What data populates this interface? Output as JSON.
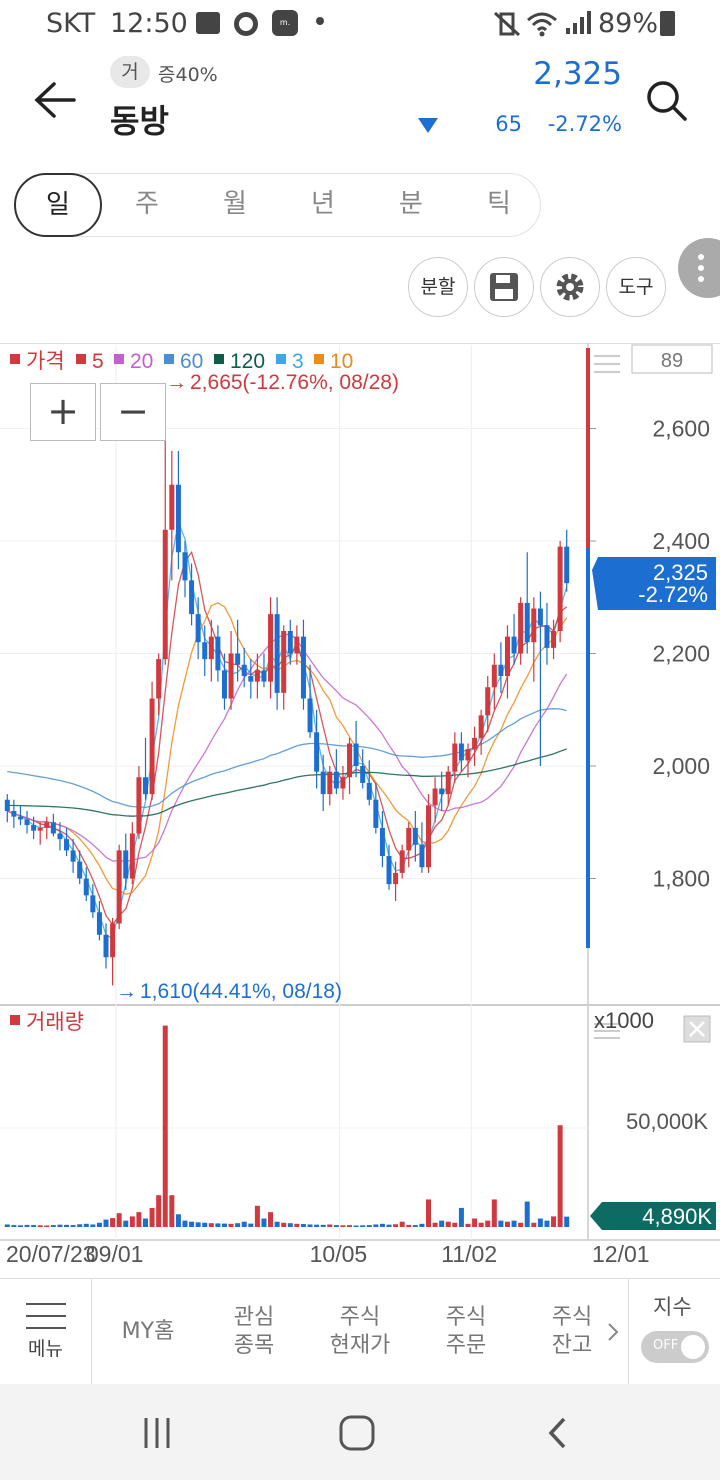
{
  "status_bar": {
    "carrier": "SKT",
    "time": "12:50",
    "battery": "89%"
  },
  "header": {
    "badge": "거",
    "margin_rate": "증40%",
    "stock_name": "동방",
    "price": "2,325",
    "change": "65",
    "change_pct": "-2.72%",
    "price_color": "#1c6fd1"
  },
  "period_tabs": [
    "일",
    "주",
    "월",
    "년",
    "분",
    "틱"
  ],
  "active_tab": "일",
  "tools": {
    "split": "분할",
    "tool": "도구"
  },
  "chart": {
    "legend": [
      {
        "label": "가격",
        "color": "#d0393e"
      },
      {
        "label": "5",
        "color": "#d0393e"
      },
      {
        "label": "20",
        "color": "#c45fcf"
      },
      {
        "label": "60",
        "color": "#4a8fd0"
      },
      {
        "label": "120",
        "color": "#0e5c4a"
      },
      {
        "label": "3",
        "color": "#3aa9e8"
      },
      {
        "label": "10",
        "color": "#ee8a18"
      }
    ],
    "high_note": "2,665(-12.76%, 08/28)",
    "low_note": "1,610(44.41%, 08/18)",
    "count_box": "89",
    "zoom_in": "+",
    "zoom_out": "−",
    "price_ticks": [
      "2,600",
      "2,400",
      "2,200",
      "2,000",
      "1,800"
    ],
    "current_price": "2,325",
    "current_pct": "-2.72%",
    "volume_label": "거래량",
    "volume_multiplier": "x1000",
    "volume_tick": "50,000K",
    "volume_current": "4,890K",
    "date_ticks": [
      "20/07/23",
      "09/01",
      "10/05",
      "11/02",
      "12/01"
    ],
    "up_color": "#d0393e",
    "down_color": "#1c6fd1"
  },
  "chart_data": {
    "type": "candlestick",
    "price_axis": {
      "ticks": [
        1800,
        2000,
        2200,
        2400,
        2600
      ],
      "ylim": [
        1600,
        2700
      ]
    },
    "candles": [
      [
        1940,
        1950,
        1900,
        1920
      ],
      [
        1920,
        1940,
        1890,
        1910
      ],
      [
        1910,
        1930,
        1895,
        1905
      ],
      [
        1905,
        1920,
        1880,
        1895
      ],
      [
        1895,
        1910,
        1870,
        1885
      ],
      [
        1885,
        1900,
        1860,
        1890
      ],
      [
        1890,
        1910,
        1870,
        1900
      ],
      [
        1900,
        1915,
        1875,
        1880
      ],
      [
        1880,
        1900,
        1850,
        1870
      ],
      [
        1870,
        1890,
        1840,
        1850
      ],
      [
        1850,
        1870,
        1810,
        1830
      ],
      [
        1830,
        1850,
        1790,
        1800
      ],
      [
        1800,
        1820,
        1760,
        1770
      ],
      [
        1770,
        1790,
        1730,
        1740
      ],
      [
        1740,
        1760,
        1690,
        1700
      ],
      [
        1700,
        1720,
        1640,
        1660
      ],
      [
        1660,
        1730,
        1610,
        1720
      ],
      [
        1720,
        1860,
        1710,
        1850
      ],
      [
        1850,
        1880,
        1780,
        1800
      ],
      [
        1800,
        1900,
        1790,
        1880
      ],
      [
        1880,
        2000,
        1870,
        1980
      ],
      [
        1980,
        2050,
        1940,
        1950
      ],
      [
        1950,
        2150,
        1940,
        2120
      ],
      [
        2120,
        2200,
        2090,
        2190
      ],
      [
        2190,
        2665,
        2180,
        2420
      ],
      [
        2420,
        2560,
        2330,
        2500
      ],
      [
        2500,
        2560,
        2350,
        2380
      ],
      [
        2380,
        2400,
        2300,
        2330
      ],
      [
        2330,
        2360,
        2250,
        2270
      ],
      [
        2270,
        2300,
        2190,
        2220
      ],
      [
        2220,
        2250,
        2160,
        2190
      ],
      [
        2190,
        2260,
        2150,
        2230
      ],
      [
        2230,
        2250,
        2150,
        2170
      ],
      [
        2170,
        2200,
        2100,
        2120
      ],
      [
        2120,
        2240,
        2100,
        2200
      ],
      [
        2200,
        2260,
        2150,
        2180
      ],
      [
        2180,
        2210,
        2140,
        2160
      ],
      [
        2160,
        2190,
        2120,
        2150
      ],
      [
        2150,
        2200,
        2120,
        2170
      ],
      [
        2170,
        2200,
        2140,
        2150
      ],
      [
        2150,
        2300,
        2120,
        2270
      ],
      [
        2270,
        2300,
        2100,
        2130
      ],
      [
        2130,
        2250,
        2100,
        2240
      ],
      [
        2240,
        2260,
        2180,
        2200
      ],
      [
        2200,
        2250,
        2180,
        2230
      ],
      [
        2230,
        2260,
        2100,
        2120
      ],
      [
        2120,
        2180,
        2050,
        2060
      ],
      [
        2060,
        2100,
        1960,
        1990
      ],
      [
        1990,
        2020,
        1920,
        1950
      ],
      [
        1950,
        2000,
        1930,
        1990
      ],
      [
        1990,
        2030,
        1950,
        1960
      ],
      [
        1960,
        2000,
        1940,
        1980
      ],
      [
        1980,
        2050,
        1950,
        2040
      ],
      [
        2040,
        2080,
        1980,
        2000
      ],
      [
        2000,
        2030,
        1960,
        1970
      ],
      [
        1970,
        2010,
        1930,
        1940
      ],
      [
        1940,
        1970,
        1880,
        1890
      ],
      [
        1890,
        1920,
        1820,
        1840
      ],
      [
        1840,
        1860,
        1780,
        1790
      ],
      [
        1790,
        1830,
        1760,
        1810
      ],
      [
        1810,
        1860,
        1800,
        1850
      ],
      [
        1850,
        1900,
        1820,
        1890
      ],
      [
        1890,
        1920,
        1830,
        1860
      ],
      [
        1860,
        1900,
        1810,
        1820
      ],
      [
        1820,
        1950,
        1810,
        1930
      ],
      [
        1930,
        1980,
        1900,
        1960
      ],
      [
        1960,
        1990,
        1920,
        1950
      ],
      [
        1950,
        2000,
        1930,
        1990
      ],
      [
        1990,
        2060,
        1970,
        2040
      ],
      [
        2040,
        2060,
        1990,
        2010
      ],
      [
        2010,
        2040,
        1980,
        2030
      ],
      [
        2030,
        2070,
        2000,
        2050
      ],
      [
        2050,
        2100,
        2020,
        2090
      ],
      [
        2090,
        2160,
        2060,
        2140
      ],
      [
        2140,
        2200,
        2100,
        2180
      ],
      [
        2180,
        2220,
        2130,
        2160
      ],
      [
        2160,
        2250,
        2120,
        2230
      ],
      [
        2230,
        2270,
        2180,
        2200
      ],
      [
        2200,
        2300,
        2180,
        2290
      ],
      [
        2290,
        2380,
        2200,
        2220
      ],
      [
        2220,
        2300,
        2150,
        2280
      ],
      [
        2280,
        2310,
        2000,
        2250
      ],
      [
        2250,
        2290,
        2180,
        2210
      ],
      [
        2210,
        2260,
        2190,
        2240
      ],
      [
        2240,
        2400,
        2220,
        2390
      ],
      [
        2390,
        2420,
        2310,
        2325
      ]
    ],
    "volume_axis": {
      "ticks": [
        50000
      ],
      "unit": "K",
      "ylim": [
        0,
        100000
      ]
    },
    "volume": [
      1200,
      900,
      800,
      1000,
      900,
      800,
      700,
      900,
      1100,
      1000,
      900,
      1300,
      1500,
      1200,
      2000,
      3500,
      4200,
      6500,
      3000,
      5000,
      7000,
      4000,
      9000,
      15000,
      95000,
      15000,
      6000,
      3000,
      2500,
      2200,
      2000,
      1800,
      1700,
      1600,
      1500,
      1800,
      2500,
      1600,
      10000,
      4000,
      7000,
      2500,
      2000,
      1800,
      1500,
      1400,
      1200,
      1100,
      1000,
      1200,
      900,
      800,
      900,
      700,
      800,
      900,
      1200,
      1500,
      1100,
      1300,
      2500,
      1000,
      900,
      1500,
      13000,
      2000,
      3000,
      2500,
      2000,
      9000,
      1500,
      4000,
      2000,
      3000,
      13000,
      3000,
      2500,
      3000,
      2000,
      12000,
      2000,
      4000,
      3000,
      5000,
      48000,
      4890
    ],
    "x_ticks": [
      "20/07/23",
      "09/01",
      "10/05",
      "11/02",
      "12/01"
    ],
    "series": [
      {
        "name": "가격"
      },
      {
        "name": "5"
      },
      {
        "name": "20"
      },
      {
        "name": "60"
      },
      {
        "name": "120"
      },
      {
        "name": "3"
      },
      {
        "name": "10"
      },
      {
        "name": "거래량"
      }
    ],
    "high": {
      "value": 2665,
      "date": "08/28",
      "pct": "-12.76%"
    },
    "low": {
      "value": 1610,
      "date": "08/18",
      "pct": "44.41%"
    },
    "current": 2325
  },
  "bottom_nav": {
    "menu": "메뉴",
    "items": [
      "MY홈",
      "관심\n종목",
      "주식\n현재가",
      "주식\n주문",
      "주식\n잔고"
    ],
    "index_label": "지수",
    "toggle": "OFF"
  }
}
